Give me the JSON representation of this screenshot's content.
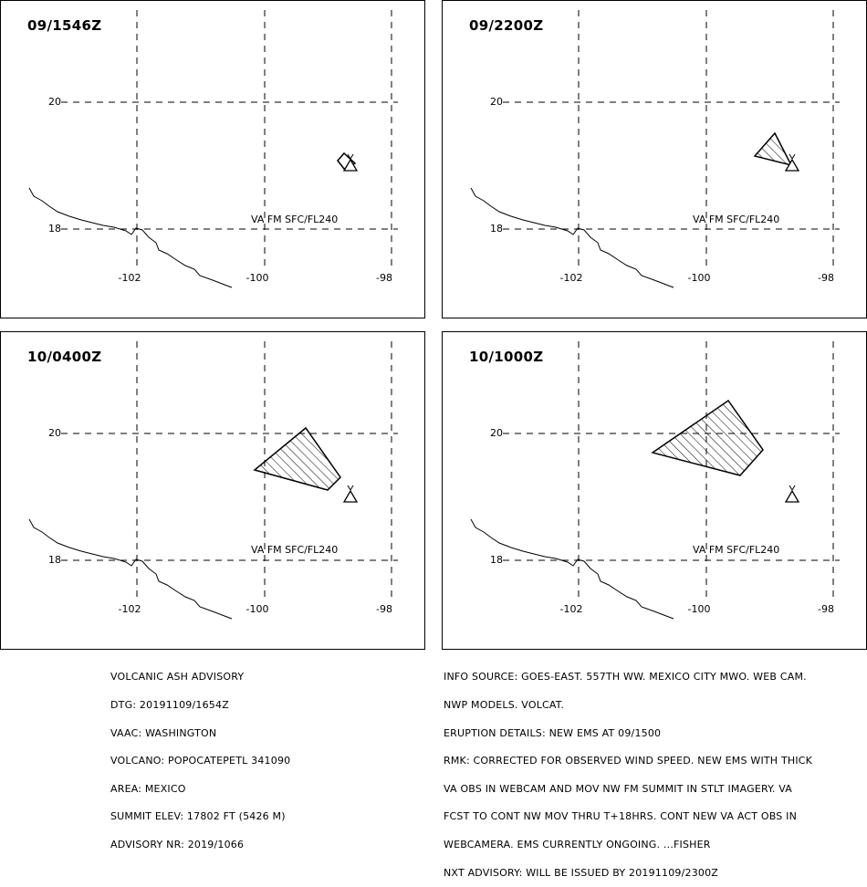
{
  "panels": [
    {
      "title": "09/1546Z",
      "va_label": "VA FM SFC/FL240"
    },
    {
      "title": "09/2200Z",
      "va_label": "VA FM SFC/FL240"
    },
    {
      "title": "10/0400Z",
      "va_label": "VA FM SFC/FL240"
    },
    {
      "title": "10/1000Z",
      "va_label": "VA FM SFC/FL240"
    }
  ],
  "axes": {
    "lat_labels": [
      "20",
      "18"
    ],
    "lon_labels": [
      "-102",
      "-100",
      "-98"
    ]
  },
  "footer_left": [
    "VOLCANIC ASH ADVISORY",
    "DTG: 20191109/1654Z",
    "VAAC: WASHINGTON",
    "VOLCANO: POPOCATEPETL 341090",
    "AREA: MEXICO",
    "SUMMIT ELEV: 17802 FT (5426 M)",
    "ADVISORY NR: 2019/1066"
  ],
  "footer_right": [
    "INFO SOURCE: GOES-EAST. 557TH WW. MEXICO CITY MWO. WEB CAM.",
    "NWP MODELS. VOLCAT.",
    "ERUPTION DETAILS: NEW EMS AT 09/1500",
    "RMK: CORRECTED FOR OBSERVED WIND SPEED. NEW EMS WITH THICK",
    "VA OBS IN WEBCAM AND MOV NW FM SUMMIT IN STLT IMAGERY. VA",
    "FCST TO CONT NW MOV THRU T+18HRS. CONT NEW VA ACT OBS IN",
    "WEBCAMERA. EMS CURRENTLY ONGOING. ...FISHER",
    "NXT ADVISORY: WILL BE ISSUED BY 20191109/2300Z"
  ]
}
